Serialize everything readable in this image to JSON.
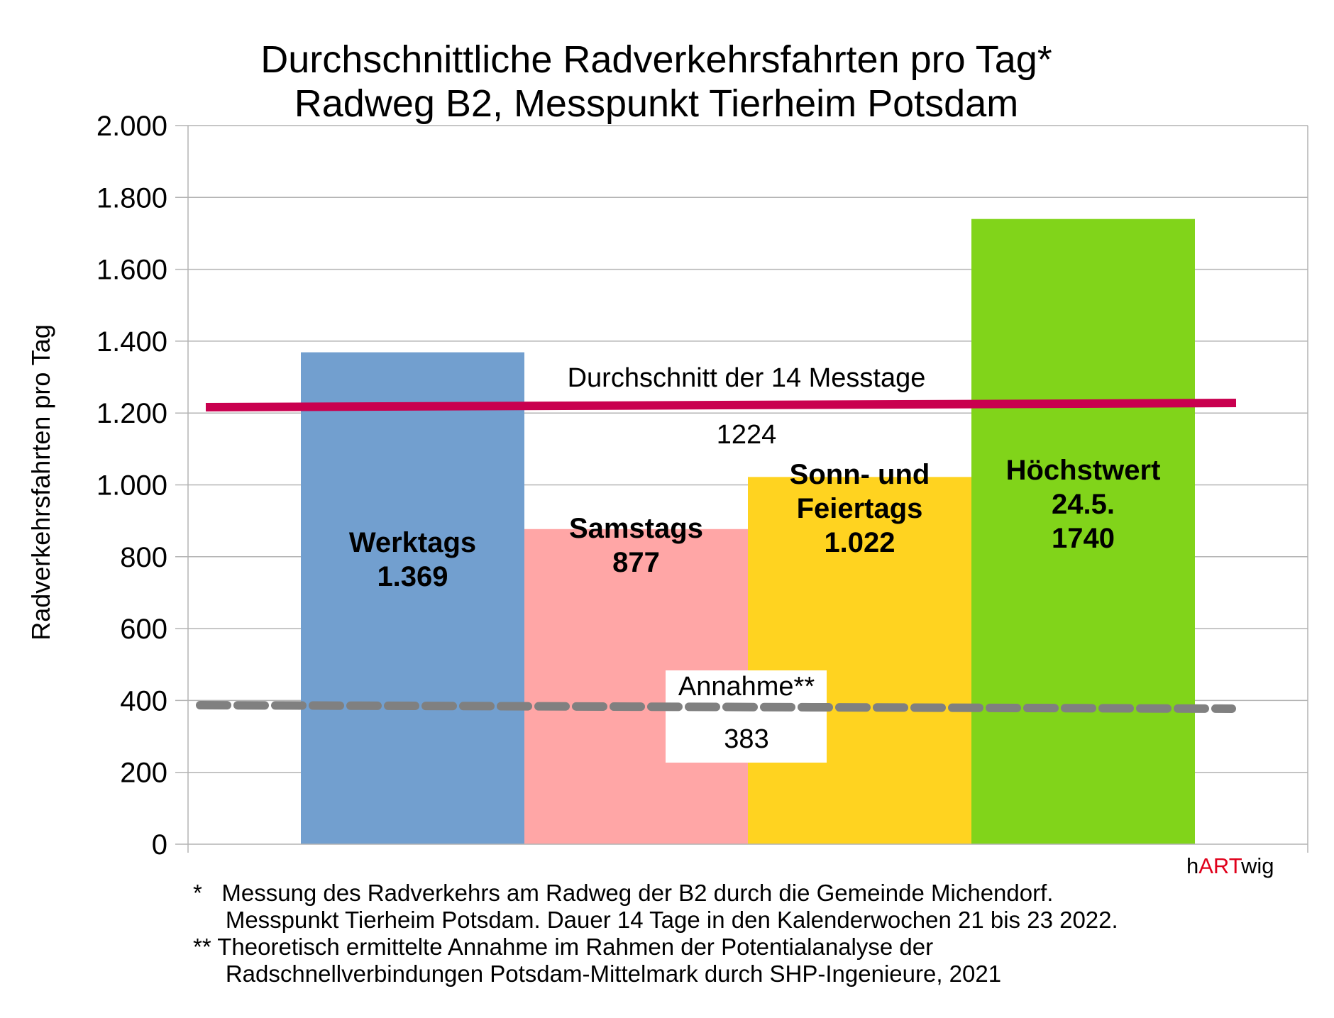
{
  "chart_data": {
    "type": "bar",
    "title": [
      "Durchschnittliche Radverkehrsfahrten pro Tag*",
      "Radweg B2, Messpunkt Tierheim Potsdam"
    ],
    "xlabel": "",
    "ylabel": "Radverkehrsfahrten pro Tag",
    "ylim": [
      0,
      2000
    ],
    "yticks": [
      0,
      200,
      400,
      600,
      800,
      1000,
      1200,
      1400,
      1600,
      1800,
      2000
    ],
    "ytick_labels": [
      "0",
      "200",
      "400",
      "600",
      "800",
      "1.000",
      "1.200",
      "1.400",
      "1.600",
      "1.800",
      "2.000"
    ],
    "grid": true,
    "bars": [
      {
        "label": [
          "Werktags",
          "1.369"
        ],
        "value": 1369,
        "color": "#729fcf"
      },
      {
        "label": [
          "Samstags",
          "877"
        ],
        "value": 877,
        "color": "#ffa6a6"
      },
      {
        "label": [
          "Sonn- und",
          "Feiertags",
          "1.022"
        ],
        "value": 1022,
        "color": "#ffd320"
      },
      {
        "label": [
          "Höchstwert",
          "24.5.",
          "1740"
        ],
        "value": 1740,
        "color": "#81d41a"
      }
    ],
    "reference_lines": [
      {
        "name": "Durchschnitt der 14 Messtage",
        "value": 1224,
        "value_label": "1224",
        "color": "#c9004f",
        "style": "solid"
      },
      {
        "name": "Annahme**",
        "value": 383,
        "value_label": "383",
        "color": "#808080",
        "style": "dashed"
      }
    ]
  },
  "footnotes": [
    "*   Messung des Radverkehrs am Radweg der B2 durch die Gemeinde Michendorf.",
    "     Messpunkt Tierheim Potsdam. Dauer 14 Tage in den Kalenderwochen 21 bis 23 2022.",
    "** Theoretisch ermittelte Annahme im Rahmen der Potentialanalyse der",
    "     Radschnellverbindungen Potsdam-Mittelmark durch SHP-Ingenieure, 2021"
  ],
  "brand": {
    "pre": "h",
    "mid": "ART",
    "post": "wig"
  }
}
